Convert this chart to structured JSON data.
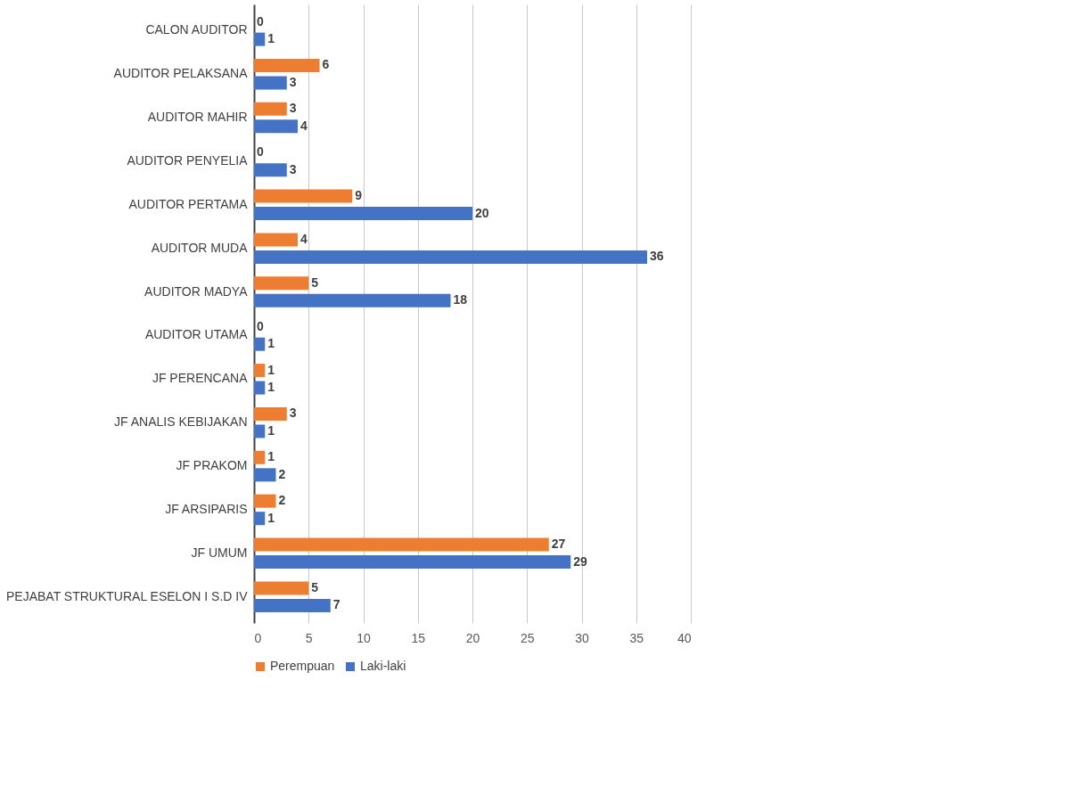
{
  "chart_data": {
    "type": "bar",
    "orientation": "horizontal",
    "categories": [
      "CALON AUDITOR",
      "AUDITOR PELAKSANA",
      "AUDITOR MAHIR",
      "AUDITOR PENYELIA",
      "AUDITOR PERTAMA",
      "AUDITOR MUDA",
      "AUDITOR MADYA",
      "AUDITOR UTAMA",
      "JF PERENCANA",
      "JF ANALIS KEBIJAKAN",
      "JF PRAKOM",
      "JF ARSIPARIS",
      "JF UMUM",
      "PEJABAT STRUKTURAL ESELON I S.D IV"
    ],
    "series": [
      {
        "name": "Perempuan",
        "color": "#ed7d31",
        "values": [
          0,
          6,
          3,
          0,
          9,
          4,
          5,
          0,
          1,
          3,
          1,
          2,
          27,
          5
        ]
      },
      {
        "name": "Laki-laki",
        "color": "#4472c4",
        "values": [
          1,
          3,
          4,
          3,
          20,
          36,
          18,
          1,
          1,
          1,
          2,
          1,
          29,
          7
        ]
      }
    ],
    "xlim": [
      0,
      40
    ],
    "xticks": [
      0,
      5,
      10,
      15,
      20,
      25,
      30,
      35,
      40
    ],
    "grid": "x",
    "legend": "bottom",
    "data_labels": true
  }
}
